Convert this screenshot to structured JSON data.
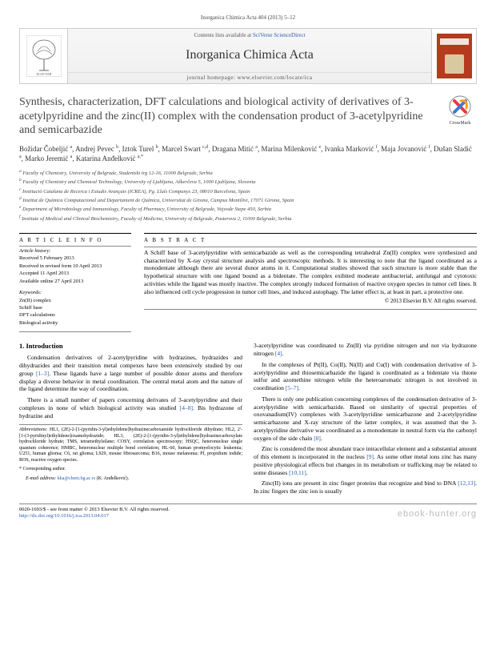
{
  "citation": "Inorganica Chimica Acta 404 (2013) 5–12",
  "banner": {
    "contents_line_prefix": "Contents lists available at ",
    "contents_link": "SciVerse ScienceDirect",
    "journal": "Inorganica Chimica Acta",
    "homepage_prefix": "journal homepage: ",
    "homepage": "www.elsevier.com/locate/ica"
  },
  "crossmark_label": "CrossMark",
  "title": "Synthesis, characterization, DFT calculations and biological activity of derivatives of 3-acetylpyridine and the zinc(II) complex with the condensation product of 3-acetylpyridine and semicarbazide",
  "authors_html": "Božidar Čobeljić <sup>a</sup>, Andrej Pevec <sup>b</sup>, Iztok Turel <sup>b</sup>, Marcel Swart <sup>c,d</sup>, Dragana Mitić <sup>a</sup>, Marina Milenković <sup>e</sup>, Ivanka Marković <sup>f</sup>, Maja Jovanović <sup>f</sup>, Dušan Sladić <sup>a</sup>, Marko Jeremić <sup>a</sup>, Katarina Anđelković <sup>a,*</sup>",
  "affiliations": [
    "a Faculty of Chemistry, University of Belgrade, Studentski trg 12-16, 11000 Belgrade, Serbia",
    "b Faculty of Chemistry and Chemical Technology, University of Ljubljana, Aškerčeva 5, 1000 Ljubljana, Slovenia",
    "c Institució Catalana de Recerca i Estudis Avançats (ICREA), Pg. Lluís Companys 23, 08010 Barcelona, Spain",
    "d Institut de Química Computacional and Departament de Química, Universitat de Girona, Campus Montilivi, 17071 Girona, Spain",
    "e Department of Microbiology and Immunology, Faculty of Pharmacy, University of Belgrade, Vojvode Stepe 450, Serbia",
    "f Institute of Medical and Clinical Biochemistry, Faculty of Medicine, University of Belgrade, Pasterova 2, 11000 Belgrade, Serbia"
  ],
  "article_info_heading": "A R T I C L E   I N F O",
  "abstract_heading": "A B S T R A C T",
  "history_label": "Article history:",
  "history": [
    "Received 5 February 2013",
    "Received in revised form 10 April 2013",
    "Accepted 11 April 2013",
    "Available online 27 April 2013"
  ],
  "keywords_label": "Keywords:",
  "keywords": [
    "Zn(II) complex",
    "Schiff base",
    "DFT calculations",
    "Biological activity"
  ],
  "abstract": "A Schiff base of 3-acetylpyridine with semicarbazide as well as the corresponding tetrahedral Zn(II) complex were synthesized and characterized by X-ray crystal structure analysis and spectroscopic methods. It is interesting to note that the ligand coordinated as a monodentate although there are several donor atoms in it. Computational studies showed that such structure is more stable than the hypothetical structure with one ligand bound as a bidentate. The complex exibited moderate antibacterial, antifungal and cytotoxic activities while the ligand was mostly inactive. The complex strongly induced formation of reactive oxygen species in tumor cell lines. It also influenced cell cycle progression in tumor cell lines, and induced autophagy. The latter effect is, at least in part, a protective one.",
  "copyright": "© 2013 Elsevier B.V. All rights reserved.",
  "intro_heading": "1. Introduction",
  "intro_p1": "Condensation derivatives of 2-acetylpyridine with hydrazines, hydrazides and dihydrazides and their transition metal compexes have been extensively studied by our group ",
  "intro_p1_ref": "[1–3]",
  "intro_p1b": ". These ligands have a large number of possible donor atoms and therefore display a diverse behavior in metal coordination. The central metal atom and the nature of the ligand determine the way of coordination.",
  "intro_p2a": "There is a small number of papers concerning derivates of 3-acetylpyridine and their complexes in none of which biological activity was studied ",
  "intro_p2_ref": "[4–8]",
  "intro_p2b": ". Bis hydrazone of hydrazine and ",
  "col2_p1a": "3-acetylpyridine was coordinated to Zn(II) via pyridine nitrogen and not via hydrazone nitrogen ",
  "col2_p1_ref": "[4]",
  "col2_p1b": ".",
  "col2_p2a": "In the complexes of Pt(II), Co(II), Ni(II) and Cu(I) with condensation derivative of 3-acetylpyridine and thiosemicarbazide the ligand is coordinated as a bidentate via thione sulfur and azomethine nitrogen while the heteroaromatic nitrogen is not involved in coordination ",
  "col2_p2_ref": "[5–7]",
  "col2_p2b": ".",
  "col2_p3a": "There is only one publication concerning complexes of the condensation derivative of 3-acetylpyridine with semicarbazide. Based on similarity of spectral properties of oxovanadium(IV) complexes with 3-acetylpyridine semicarbazone and 2-acetylpyridine semicarbazone and X-ray structure of the latter complex, it was assumed that the 3-acetylpyridine derivative was coordinated as a monodentate in neutral form via the carbonyl oxygen of the side chain ",
  "col2_p3_ref": "[8]",
  "col2_p3b": ".",
  "col2_p4a": "Zinc is considered the most abundant trace intracellular element and a substantial amount of this element is incorporated in the nucleus ",
  "col2_p4_ref1": "[9]",
  "col2_p4b": ". As some other metal ions zinc has many positive physiological effects but changes in its metabolism or trafficking may be related to some diseases ",
  "col2_p4_ref2": "[10,11]",
  "col2_p4c": ".",
  "col2_p5a": "Zinc(II) ions are present in zinc finger proteins that recognize and bind to DNA ",
  "col2_p5_ref": "[12,13]",
  "col2_p5b": ". In zinc fingers the zinc ion is usually",
  "abbrev_label": "Abbreviations:",
  "abbrev": " HL1, (2E)-2-[1-(pyridin-3-yl)ethylidene]hydrazinecarboxamide hydrochloride dihydrate; HL2, 2'-[1-(3-pyridinyl)ethylidene]oxamohydrazide; HL3, (2E)-2-[1-(pyridin-3-yl)ethylidene]hydrazinecarboxylate hydrochloride hydrate; TMS, tetramethylsilane; COSY, correlation spectroscopy; HSQC, heteronuclear single quantum coherence; HMBC, heteronuclear multiple bond correlation; HL-60, human promyelocytic leukemia; U251, human glioma; C6, rat glioma; L929, mouse fibrosarcoma; B16, mouse melanoma; PI, propidium iodide; ROS, reactive oxygen species.",
  "corr_label": "* Corresponding author.",
  "corr_email_label": "E-mail address: ",
  "corr_email": "kka@chem.bg.ac.rs",
  "corr_name": " (K. Anđelković).",
  "footer_issn": "0020-1693/$ - see front matter © 2013 Elsevier B.V. All rights reserved.",
  "footer_doi": "http://dx.doi.org/10.1016/j.ica.2013.04.017",
  "colors": {
    "link": "#2a5db0",
    "elsevier_orange": "#f58025",
    "cover": "#b53a1e",
    "text": "#000000",
    "muted": "#555555"
  }
}
